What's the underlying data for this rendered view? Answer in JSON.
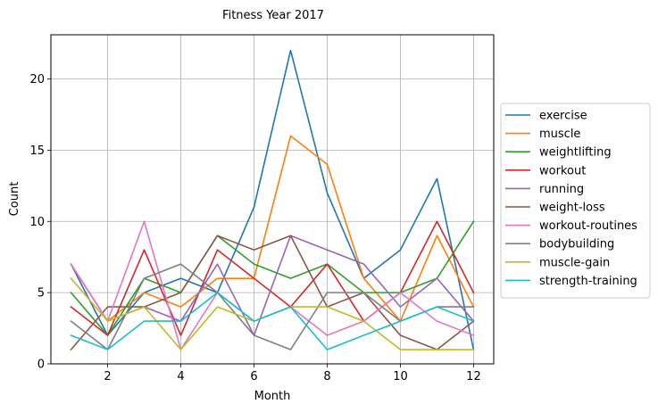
{
  "chart_data": {
    "type": "line",
    "title": "Fitness Year 2017",
    "xlabel": "Month",
    "ylabel": "Count",
    "x": [
      1,
      2,
      3,
      4,
      5,
      6,
      7,
      8,
      9,
      10,
      11,
      12
    ],
    "xlim": [
      0.45,
      12.55
    ],
    "ylim": [
      0,
      23.1
    ],
    "xticks": [
      2,
      4,
      6,
      8,
      10,
      12
    ],
    "yticks": [
      0,
      5,
      10,
      15,
      20
    ],
    "grid": true,
    "legend_position": "right",
    "series": [
      {
        "name": "exercise",
        "color": "#1f77b4",
        "values": [
          7,
          2,
          5,
          6,
          5,
          11,
          22,
          12,
          6,
          8,
          13,
          1
        ]
      },
      {
        "name": "muscle",
        "color": "#ff7f0e",
        "values": [
          7,
          3,
          5,
          4,
          6,
          6,
          16,
          14,
          6,
          3,
          9,
          4
        ]
      },
      {
        "name": "weightlifting",
        "color": "#2ca02c",
        "values": [
          5,
          2,
          6,
          5,
          9,
          7,
          6,
          7,
          5,
          5,
          6,
          10
        ]
      },
      {
        "name": "workout",
        "color": "#d62728",
        "values": [
          4,
          2,
          8,
          2,
          8,
          6,
          4,
          7,
          3,
          5,
          10,
          5
        ]
      },
      {
        "name": "running",
        "color": "#9467bd",
        "values": [
          7,
          3,
          4,
          3,
          7,
          2,
          9,
          8,
          7,
          4,
          6,
          3
        ]
      },
      {
        "name": "weight-loss",
        "color": "#8c564b",
        "values": [
          1,
          4,
          4,
          5,
          9,
          8,
          9,
          4,
          5,
          2,
          1,
          3
        ]
      },
      {
        "name": "workout-routines",
        "color": "#e377c2",
        "values": [
          7,
          3,
          10,
          1,
          5,
          3,
          4,
          2,
          3,
          5,
          3,
          2
        ]
      },
      {
        "name": "bodybuilding",
        "color": "#7f7f7f",
        "values": [
          3,
          1,
          6,
          7,
          5,
          2,
          1,
          5,
          5,
          3,
          4,
          4
        ]
      },
      {
        "name": "muscle-gain",
        "color": "#bcbd22",
        "values": [
          6,
          3,
          4,
          1,
          4,
          3,
          4,
          4,
          3,
          1,
          1,
          1
        ]
      },
      {
        "name": "strength-training",
        "color": "#17becf",
        "values": [
          2,
          1,
          3,
          3,
          5,
          3,
          4,
          1,
          2,
          3,
          4,
          3
        ]
      }
    ]
  }
}
